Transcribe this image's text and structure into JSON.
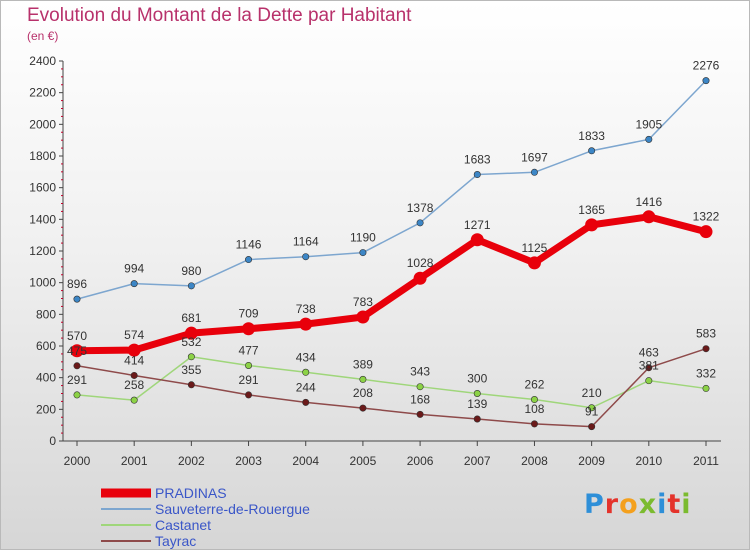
{
  "header": {
    "title": "Evolution du Montant de la Dette par Habitant",
    "subtitle": "(en €)"
  },
  "logo": {
    "letters": [
      "P",
      "r",
      "o",
      "x",
      "i",
      "t",
      "i"
    ],
    "colors": [
      "#2e8fd8",
      "#e4332b",
      "#f4a01d",
      "#7bbb2f",
      "#2e8fd8",
      "#e4332b",
      "#7bbb2f"
    ]
  },
  "chart_data": {
    "type": "line",
    "title": "Evolution du Montant de la Dette par Habitant",
    "ylabel": "(en €)",
    "xlabel": "",
    "ylim": [
      0,
      2400
    ],
    "yticks": [
      0,
      200,
      400,
      600,
      800,
      1000,
      1200,
      1400,
      1600,
      1800,
      2000,
      2200,
      2400
    ],
    "categories": [
      "2000",
      "2001",
      "2002",
      "2003",
      "2004",
      "2005",
      "2006",
      "2007",
      "2008",
      "2009",
      "2010",
      "2011"
    ],
    "grid": false,
    "legend_position": "bottom-left",
    "series": [
      {
        "name": "PRADINAS",
        "color": "#e8000b",
        "point_color": "#e8000b",
        "emphasis": true,
        "values": [
          570,
          574,
          681,
          709,
          738,
          783,
          1028,
          1271,
          1125,
          1365,
          1416,
          1322
        ]
      },
      {
        "name": "Sauveterre-de-Rouergue",
        "color": "#7da6cf",
        "point_color": "#3c86c6",
        "emphasis": false,
        "values": [
          896,
          994,
          980,
          1146,
          1164,
          1190,
          1378,
          1683,
          1697,
          1833,
          1905,
          2276
        ]
      },
      {
        "name": "Castanet",
        "color": "#9fd67a",
        "point_color": "#8cd246",
        "emphasis": false,
        "values": [
          291,
          258,
          532,
          477,
          434,
          389,
          343,
          300,
          262,
          210,
          381,
          332
        ]
      },
      {
        "name": "Tayrac",
        "color": "#8e4a4a",
        "point_color": "#6b1a1a",
        "emphasis": false,
        "values": [
          475,
          414,
          355,
          291,
          244,
          208,
          168,
          139,
          108,
          91,
          463,
          583
        ]
      }
    ]
  }
}
